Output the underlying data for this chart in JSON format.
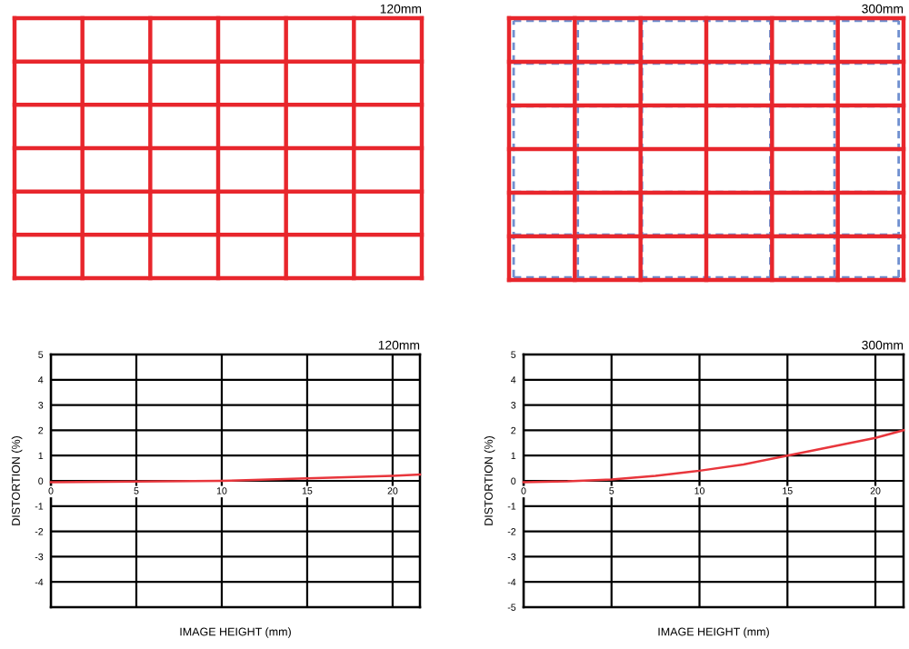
{
  "chart_data": [
    {
      "type": "other",
      "title": "120mm"
    },
    {
      "type": "other",
      "title": "300mm"
    },
    {
      "type": "line",
      "title": "120mm",
      "xlabel": "IMAGE HEIGHT (mm)",
      "ylabel": "DISTORTION (%)",
      "x": [
        0,
        5,
        10,
        15,
        20,
        21.6
      ],
      "series": [
        {
          "color": "#e8363c",
          "values": [
            -0.05,
            -0.03,
            0.0,
            0.1,
            0.2,
            0.25
          ]
        }
      ],
      "xlim": [
        0,
        21.6
      ],
      "ylim": [
        -5,
        5
      ],
      "xticks": [
        0,
        5,
        10,
        15,
        20
      ],
      "yticks": [
        {
          "value": -5,
          "label": null
        },
        -4,
        -3,
        -2,
        -1,
        0,
        1,
        2,
        3,
        4,
        5
      ],
      "grid": true
    },
    {
      "type": "line",
      "title": "300mm",
      "xlabel": "IMAGE HEIGHT (mm)",
      "ylabel": "DISTORTION (%)",
      "x": [
        0,
        2.5,
        5,
        7.5,
        10,
        12.5,
        15,
        17.5,
        20,
        21.6
      ],
      "series": [
        {
          "color": "#e8363c",
          "values": [
            -0.05,
            -0.02,
            0.05,
            0.2,
            0.4,
            0.65,
            1.0,
            1.35,
            1.7,
            2.0
          ]
        }
      ],
      "xlim": [
        0,
        21.6
      ],
      "ylim": [
        -5,
        5
      ],
      "xticks": [
        0,
        5,
        10,
        15,
        20
      ],
      "yticks": [
        -5,
        -4,
        -3,
        -2,
        -1,
        0,
        1,
        2,
        3,
        4,
        5
      ],
      "grid": true
    }
  ]
}
